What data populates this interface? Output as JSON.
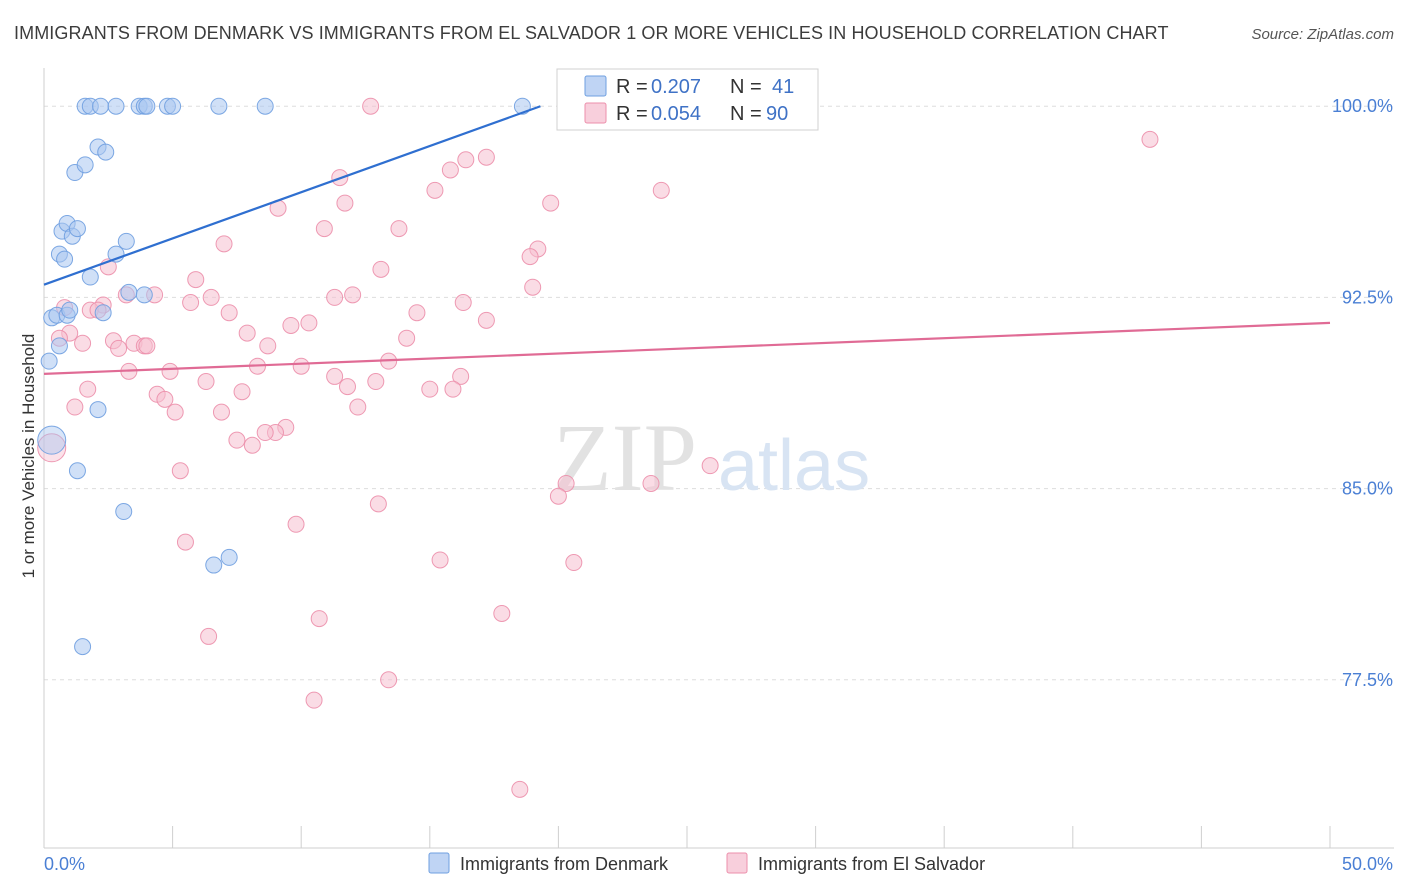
{
  "title": "IMMIGRANTS FROM DENMARK VS IMMIGRANTS FROM EL SALVADOR 1 OR MORE VEHICLES IN HOUSEHOLD CORRELATION CHART",
  "source": "Source: ZipAtlas.com",
  "watermark": {
    "zip": "ZIP",
    "atlas": "atlas"
  },
  "colors": {
    "denmark_fill": "#a9c6f0",
    "denmark_stroke": "#6f9fe0",
    "denmark_line": "#2f6fd0",
    "salvador_fill": "#f6bfd0",
    "salvador_stroke": "#ec8fab",
    "salvador_line": "#e06b95",
    "tick_text": "#4a7fd4",
    "grid": "#dddddd"
  },
  "legend": {
    "rows": [
      {
        "r_label": "R =",
        "r_value": "0.207",
        "n_label": "N =",
        "n_value": "41"
      },
      {
        "r_label": "R =",
        "r_value": "0.054",
        "n_label": "N =",
        "n_value": "90"
      }
    ]
  },
  "chart_data": {
    "type": "scatter",
    "title": "IMMIGRANTS FROM DENMARK VS IMMIGRANTS FROM EL SALVADOR 1 OR MORE VEHICLES IN HOUSEHOLD CORRELATION CHART",
    "xlabel": "",
    "ylabel": "1 or more Vehicles in Household",
    "xlim": [
      0,
      50
    ],
    "ylim": [
      70.9,
      101.5
    ],
    "x_tick_labels": [
      "0.0%",
      "50.0%"
    ],
    "y_ticks": [
      77.5,
      85.0,
      92.5,
      100.0
    ],
    "y_tick_labels": [
      "77.5%",
      "85.0%",
      "92.5%",
      "100.0%"
    ],
    "grid": true,
    "legend_position": "top-center",
    "series": [
      {
        "name": "Immigrants from Denmark",
        "r": 0.207,
        "n": 41,
        "trend": {
          "x": [
            0.0,
            19.3
          ],
          "y": [
            93.0,
            100.0
          ]
        },
        "points": [
          {
            "x": 0.3,
            "y": 86.9,
            "big": true
          },
          {
            "x": 0.2,
            "y": 90.0
          },
          {
            "x": 0.3,
            "y": 91.7
          },
          {
            "x": 0.5,
            "y": 91.8
          },
          {
            "x": 0.6,
            "y": 90.6
          },
          {
            "x": 0.9,
            "y": 91.8
          },
          {
            "x": 1.0,
            "y": 92.0
          },
          {
            "x": 0.6,
            "y": 94.2
          },
          {
            "x": 0.7,
            "y": 95.1
          },
          {
            "x": 0.8,
            "y": 94.0
          },
          {
            "x": 0.9,
            "y": 95.4
          },
          {
            "x": 1.1,
            "y": 94.9
          },
          {
            "x": 1.3,
            "y": 95.2
          },
          {
            "x": 1.2,
            "y": 97.4
          },
          {
            "x": 1.6,
            "y": 97.7
          },
          {
            "x": 1.8,
            "y": 93.3
          },
          {
            "x": 2.1,
            "y": 98.4
          },
          {
            "x": 2.4,
            "y": 98.2
          },
          {
            "x": 1.6,
            "y": 100.0
          },
          {
            "x": 1.8,
            "y": 100.0
          },
          {
            "x": 2.2,
            "y": 100.0
          },
          {
            "x": 2.8,
            "y": 100.0
          },
          {
            "x": 3.7,
            "y": 100.0
          },
          {
            "x": 3.9,
            "y": 100.0
          },
          {
            "x": 4.0,
            "y": 100.0
          },
          {
            "x": 4.8,
            "y": 100.0
          },
          {
            "x": 5.0,
            "y": 100.0
          },
          {
            "x": 6.8,
            "y": 100.0
          },
          {
            "x": 8.6,
            "y": 100.0
          },
          {
            "x": 18.6,
            "y": 100.0
          },
          {
            "x": 2.8,
            "y": 94.2
          },
          {
            "x": 3.2,
            "y": 94.7
          },
          {
            "x": 3.3,
            "y": 92.7
          },
          {
            "x": 3.9,
            "y": 92.6
          },
          {
            "x": 2.3,
            "y": 91.9
          },
          {
            "x": 2.1,
            "y": 88.1
          },
          {
            "x": 1.3,
            "y": 85.7
          },
          {
            "x": 3.1,
            "y": 84.1
          },
          {
            "x": 6.6,
            "y": 82.0
          },
          {
            "x": 7.2,
            "y": 82.3
          },
          {
            "x": 1.5,
            "y": 78.8
          }
        ]
      },
      {
        "name": "Immigrants from El Salvador",
        "r": 0.054,
        "n": 90,
        "trend": {
          "x": [
            0.0,
            50.0
          ],
          "y": [
            89.5,
            91.5
          ]
        },
        "points": [
          {
            "x": 0.3,
            "y": 86.6,
            "big": true
          },
          {
            "x": 12.7,
            "y": 100.0
          },
          {
            "x": 43.0,
            "y": 98.7
          },
          {
            "x": 17.2,
            "y": 98.0
          },
          {
            "x": 16.4,
            "y": 97.9
          },
          {
            "x": 15.8,
            "y": 97.5
          },
          {
            "x": 11.5,
            "y": 97.2
          },
          {
            "x": 15.2,
            "y": 96.7
          },
          {
            "x": 24.0,
            "y": 96.7
          },
          {
            "x": 11.7,
            "y": 96.2
          },
          {
            "x": 19.7,
            "y": 96.2
          },
          {
            "x": 9.1,
            "y": 96.0
          },
          {
            "x": 13.8,
            "y": 95.2
          },
          {
            "x": 10.9,
            "y": 95.2
          },
          {
            "x": 7.0,
            "y": 94.6
          },
          {
            "x": 19.2,
            "y": 94.4
          },
          {
            "x": 18.9,
            "y": 94.1
          },
          {
            "x": 2.5,
            "y": 93.7
          },
          {
            "x": 13.1,
            "y": 93.6
          },
          {
            "x": 5.9,
            "y": 93.2
          },
          {
            "x": 19.0,
            "y": 92.9
          },
          {
            "x": 3.2,
            "y": 92.6
          },
          {
            "x": 4.3,
            "y": 92.6
          },
          {
            "x": 12.0,
            "y": 92.6
          },
          {
            "x": 11.3,
            "y": 92.5
          },
          {
            "x": 6.5,
            "y": 92.5
          },
          {
            "x": 5.7,
            "y": 92.3
          },
          {
            "x": 16.3,
            "y": 92.3
          },
          {
            "x": 2.3,
            "y": 92.2
          },
          {
            "x": 0.8,
            "y": 92.1
          },
          {
            "x": 1.8,
            "y": 92.0
          },
          {
            "x": 2.1,
            "y": 92.0
          },
          {
            "x": 7.2,
            "y": 91.9
          },
          {
            "x": 14.5,
            "y": 91.9
          },
          {
            "x": 17.2,
            "y": 91.6
          },
          {
            "x": 10.3,
            "y": 91.5
          },
          {
            "x": 9.6,
            "y": 91.4
          },
          {
            "x": 1.0,
            "y": 91.1
          },
          {
            "x": 7.9,
            "y": 91.1
          },
          {
            "x": 0.6,
            "y": 90.9
          },
          {
            "x": 14.1,
            "y": 90.9
          },
          {
            "x": 2.7,
            "y": 90.8
          },
          {
            "x": 1.5,
            "y": 90.7
          },
          {
            "x": 3.5,
            "y": 90.7
          },
          {
            "x": 8.7,
            "y": 90.6
          },
          {
            "x": 3.9,
            "y": 90.6
          },
          {
            "x": 4.0,
            "y": 90.6
          },
          {
            "x": 2.9,
            "y": 90.5
          },
          {
            "x": 13.4,
            "y": 90.0
          },
          {
            "x": 8.3,
            "y": 89.8
          },
          {
            "x": 10.0,
            "y": 89.8
          },
          {
            "x": 3.3,
            "y": 89.6
          },
          {
            "x": 4.9,
            "y": 89.6
          },
          {
            "x": 11.3,
            "y": 89.4
          },
          {
            "x": 16.2,
            "y": 89.4
          },
          {
            "x": 6.3,
            "y": 89.2
          },
          {
            "x": 12.9,
            "y": 89.2
          },
          {
            "x": 11.8,
            "y": 89.0
          },
          {
            "x": 15.0,
            "y": 88.9
          },
          {
            "x": 15.9,
            "y": 88.9
          },
          {
            "x": 1.7,
            "y": 88.9
          },
          {
            "x": 4.4,
            "y": 88.7
          },
          {
            "x": 7.7,
            "y": 88.8
          },
          {
            "x": 4.7,
            "y": 88.5
          },
          {
            "x": 12.2,
            "y": 88.2
          },
          {
            "x": 1.2,
            "y": 88.2
          },
          {
            "x": 5.1,
            "y": 88.0
          },
          {
            "x": 6.9,
            "y": 88.0
          },
          {
            "x": 9.4,
            "y": 87.4
          },
          {
            "x": 9.0,
            "y": 87.2
          },
          {
            "x": 8.6,
            "y": 87.2
          },
          {
            "x": 7.5,
            "y": 86.9
          },
          {
            "x": 8.1,
            "y": 86.7
          },
          {
            "x": 25.9,
            "y": 85.9
          },
          {
            "x": 5.3,
            "y": 85.7
          },
          {
            "x": 23.6,
            "y": 85.2
          },
          {
            "x": 20.3,
            "y": 85.2
          },
          {
            "x": 20.0,
            "y": 84.7
          },
          {
            "x": 13.0,
            "y": 84.4
          },
          {
            "x": 9.8,
            "y": 83.6
          },
          {
            "x": 5.5,
            "y": 82.9
          },
          {
            "x": 15.4,
            "y": 82.2
          },
          {
            "x": 20.6,
            "y": 82.1
          },
          {
            "x": 17.8,
            "y": 80.1
          },
          {
            "x": 10.7,
            "y": 79.9
          },
          {
            "x": 6.4,
            "y": 79.2
          },
          {
            "x": 13.4,
            "y": 77.5
          },
          {
            "x": 10.5,
            "y": 76.7
          },
          {
            "x": 18.5,
            "y": 73.2
          }
        ]
      }
    ]
  }
}
